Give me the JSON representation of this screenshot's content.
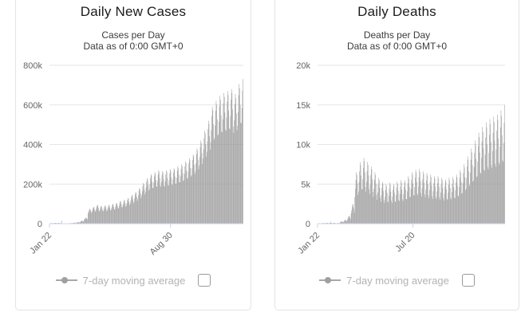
{
  "colors": {
    "bar": "#969696",
    "grid": "#e6e6e6",
    "axis_line": "#ccd6eb",
    "axis_label": "#666666",
    "legend_text": "#b3b3b3",
    "legend_marker": "#a8a8a8",
    "title": "#1b1b1b",
    "subtitle": "#3c3c3c",
    "card_border": "#e3e3e3"
  },
  "chart_data": [
    {
      "type": "bar",
      "title": "Daily New Cases",
      "subtitle": [
        "Cases per Day",
        "Data as of 0:00 GMT+0"
      ],
      "ylim": [
        0,
        800000
      ],
      "y_tick_labels": [
        "0",
        "200k",
        "400k",
        "600k",
        "800k"
      ],
      "x_tick_labels": [
        {
          "label": "Jan 22",
          "day": 0
        },
        {
          "label": "Aug 30",
          "day": 221
        }
      ],
      "grid": true,
      "legend": {
        "label": "7-day moving average",
        "enabled": false,
        "checkbox_checked": false
      },
      "values": [
        2100,
        2400,
        2800,
        3000,
        2900,
        2600,
        2200,
        2800,
        3200,
        3700,
        4000,
        3900,
        3400,
        2900,
        2800,
        3200,
        3700,
        4000,
        3900,
        3400,
        2900,
        1400,
        15100,
        1800,
        2000,
        1900,
        1700,
        1400,
        1400,
        1600,
        1800,
        2000,
        1900,
        1700,
        1400,
        2100,
        2400,
        2800,
        3000,
        2900,
        2600,
        2200,
        3500,
        4000,
        4600,
        5000,
        4900,
        4300,
        3600,
        5600,
        6400,
        7400,
        8000,
        7800,
        6800,
        5800,
        10500,
        12000,
        13800,
        15000,
        14600,
        12800,
        10800,
        21000,
        24000,
        27600,
        30000,
        29100,
        25500,
        21600,
        52000,
        60000,
        69000,
        75000,
        73000,
        64000,
        54000,
        60000,
        68000,
        78000,
        85000,
        82000,
        72000,
        61000,
        66000,
        76000,
        87000,
        95000,
        92000,
        81000,
        68000,
        63000,
        72000,
        83000,
        90000,
        87000,
        76000,
        65000,
        64000,
        74000,
        85000,
        92000,
        89000,
        78000,
        66000,
        66000,
        76000,
        87000,
        95000,
        92000,
        81000,
        68000,
        70000,
        80000,
        92000,
        100000,
        97000,
        85000,
        72000,
        74000,
        84000,
        97000,
        105000,
        102000,
        89000,
        76000,
        80000,
        92000,
        106000,
        115000,
        112000,
        98000,
        83000,
        84000,
        96000,
        110000,
        120000,
        116000,
        102000,
        86000,
        91000,
        104000,
        120000,
        130000,
        126000,
        110000,
        94000,
        102000,
        116000,
        133000,
        145000,
        141000,
        123000,
        104000,
        112000,
        128000,
        147000,
        160000,
        155000,
        136000,
        115000,
        126000,
        144000,
        166000,
        180000,
        175000,
        153000,
        130000,
        144000,
        164000,
        189000,
        205000,
        199000,
        174000,
        148000,
        161000,
        184000,
        212000,
        230000,
        223000,
        196000,
        166000,
        175000,
        200000,
        230000,
        250000,
        243000,
        213000,
        180000,
        182000,
        208000,
        239000,
        260000,
        252000,
        221000,
        187000,
        189000,
        216000,
        248000,
        270000,
        262000,
        230000,
        194000,
        186000,
        212000,
        244000,
        265000,
        257000,
        225000,
        191000,
        189000,
        216000,
        248000,
        270000,
        262000,
        230000,
        194000,
        193000,
        220000,
        253000,
        275000,
        267000,
        234000,
        198000,
        196000,
        224000,
        258000,
        280000,
        272000,
        238000,
        202000,
        203000,
        232000,
        267000,
        290000,
        281000,
        247000,
        209000,
        210000,
        240000,
        276000,
        300000,
        291000,
        255000,
        216000,
        220000,
        252000,
        290000,
        315000,
        306000,
        268000,
        227000,
        231000,
        264000,
        304000,
        330000,
        320000,
        281000,
        238000,
        245000,
        280000,
        322000,
        350000,
        340000,
        298000,
        252000,
        266000,
        304000,
        350000,
        380000,
        369000,
        323000,
        274000,
        294000,
        336000,
        386000,
        420000,
        407000,
        357000,
        302000,
        329000,
        376000,
        432000,
        470000,
        456000,
        400000,
        338000,
        364000,
        416000,
        478000,
        520000,
        504000,
        442000,
        374000,
        413000,
        472000,
        543000,
        590000,
        572000,
        502000,
        425000,
        434000,
        496000,
        570000,
        620000,
        601000,
        527000,
        446000,
        452000,
        516000,
        593000,
        645000,
        626000,
        548000,
        464000,
        462000,
        528000,
        607000,
        660000,
        640000,
        561000,
        475000,
        469000,
        536000,
        616000,
        670000,
        650000,
        570000,
        482000,
        476000,
        544000,
        626000,
        680000,
        660000,
        578000,
        490000,
        459000,
        524000,
        603000,
        655000,
        635000,
        557000,
        472000,
        494000,
        564000,
        649000,
        705000,
        684000,
        599000,
        508000,
        511000,
        584000,
        672000,
        730000
      ]
    },
    {
      "type": "bar",
      "title": "Daily Deaths",
      "subtitle": [
        "Deaths per Day",
        "Data as of 0:00 GMT+0"
      ],
      "ylim": [
        0,
        20000
      ],
      "y_tick_labels": [
        "0",
        "5k",
        "10k",
        "15k",
        "20k"
      ],
      "x_tick_labels": [
        {
          "label": "Jan 22",
          "day": 0
        },
        {
          "label": "Jul 20",
          "day": 180
        }
      ],
      "grid": true,
      "legend": {
        "label": "7-day moving average",
        "enabled": false,
        "checkbox_checked": false
      },
      "values": [
        31,
        41,
        51,
        60,
        57,
        47,
        34,
        47,
        61,
        77,
        90,
        86,
        70,
        50,
        57,
        75,
        94,
        110,
        105,
        86,
        62,
        62,
        82,
        102,
        254,
        114,
        94,
        67,
        57,
        75,
        94,
        110,
        105,
        86,
        62,
        47,
        61,
        77,
        90,
        86,
        70,
        50,
        156,
        204,
        255,
        300,
        285,
        234,
        168,
        260,
        340,
        425,
        500,
        475,
        390,
        280,
        520,
        680,
        850,
        1000,
        950,
        780,
        560,
        1300,
        1700,
        2125,
        2500,
        2375,
        1950,
        1400,
        3380,
        4420,
        5525,
        6500,
        6175,
        5070,
        3640,
        4056,
        5304,
        6630,
        7800,
        7410,
        6084,
        4368,
        4316,
        5644,
        7055,
        8300,
        7885,
        6474,
        4648,
        4056,
        5304,
        6630,
        7800,
        7410,
        6084,
        4368,
        3744,
        4896,
        6120,
        7200,
        6840,
        5616,
        4032,
        3380,
        4420,
        5525,
        6500,
        6175,
        5070,
        3640,
        3016,
        3944,
        4930,
        5800,
        5510,
        4524,
        3248,
        2756,
        3604,
        4505,
        5300,
        5035,
        4134,
        2968,
        2600,
        3400,
        4250,
        5000,
        4750,
        3900,
        2800,
        2704,
        3536,
        4420,
        5200,
        4940,
        4056,
        2912,
        2600,
        3400,
        4250,
        5000,
        4750,
        3900,
        2800,
        2756,
        3604,
        4505,
        5300,
        5035,
        4134,
        2968,
        2860,
        3740,
        4675,
        5500,
        5225,
        4290,
        3080,
        2860,
        3740,
        4675,
        5500,
        5225,
        4290,
        3080,
        3120,
        4080,
        5100,
        6000,
        5700,
        4680,
        3360,
        3380,
        4420,
        5525,
        6500,
        6175,
        5070,
        3640,
        3536,
        4624,
        5780,
        6800,
        6460,
        5304,
        3808,
        3588,
        4692,
        5865,
        6900,
        6555,
        5382,
        3864,
        3432,
        4488,
        5610,
        6600,
        6270,
        5148,
        3696,
        3328,
        4352,
        5440,
        6400,
        6080,
        4992,
        3584,
        3224,
        4216,
        5270,
        6200,
        5890,
        4836,
        3472,
        3120,
        4080,
        5100,
        6000,
        5700,
        4680,
        3360,
        3120,
        4080,
        5100,
        6000,
        5700,
        4680,
        3360,
        3016,
        3944,
        4930,
        5800,
        5510,
        4524,
        3248,
        2912,
        3808,
        4760,
        5600,
        5320,
        4368,
        3136,
        3016,
        3944,
        4930,
        5800,
        5510,
        4524,
        3248,
        3068,
        4012,
        5015,
        5900,
        5605,
        4602,
        3304,
        3224,
        4216,
        5270,
        6200,
        5890,
        4836,
        3472,
        3536,
        4624,
        5780,
        6800,
        6460,
        5304,
        3808,
        3900,
        5100,
        6375,
        7500,
        7125,
        5850,
        4200,
        4420,
        5780,
        7225,
        8500,
        8075,
        6630,
        4760,
        4940,
        6460,
        8075,
        9500,
        9025,
        7410,
        5320,
        5460,
        7140,
        8925,
        10500,
        9975,
        8190,
        5880,
        5980,
        7820,
        9775,
        11500,
        10925,
        8970,
        6440,
        6344,
        8296,
        10370,
        12200,
        11590,
        9516,
        6832,
        6656,
        8704,
        10880,
        12800,
        12160,
        9984,
        7168,
        6864,
        8976,
        11220,
        13200,
        12540,
        10296,
        7392,
        7020,
        9180,
        11475,
        13500,
        12825,
        10530,
        7560,
        7176,
        9384,
        11730,
        13800,
        13110,
        10764,
        7728,
        7436,
        9724,
        12155,
        14300,
        13585,
        11154,
        8008,
        7800,
        10200,
        12750,
        15000
      ]
    }
  ]
}
